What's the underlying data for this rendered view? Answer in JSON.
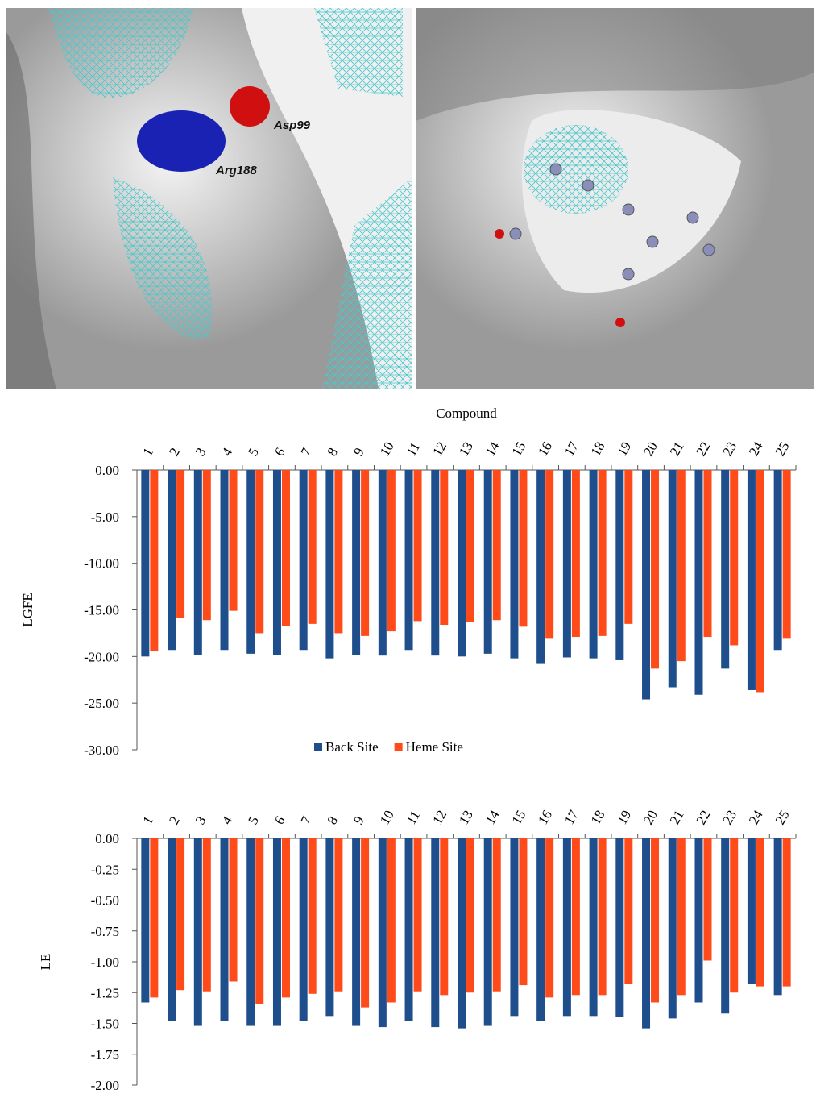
{
  "images": [
    {
      "labels": [
        "Asp99",
        "Arg188"
      ]
    },
    {}
  ],
  "chart_data": [
    {
      "type": "bar",
      "x_label": "Compound",
      "y_label": "LGFE",
      "categories": [
        "1",
        "2",
        "3",
        "4",
        "5",
        "6",
        "7",
        "8",
        "9",
        "10",
        "11",
        "12",
        "13",
        "14",
        "15",
        "16",
        "17",
        "18",
        "19",
        "20",
        "21",
        "22",
        "23",
        "24",
        "25"
      ],
      "series": [
        {
          "name": "Back Site",
          "color": "#1f4e8c",
          "values": [
            -20.0,
            -19.3,
            -19.8,
            -19.3,
            -19.7,
            -19.8,
            -19.3,
            -20.2,
            -19.8,
            -19.9,
            -19.3,
            -19.9,
            -20.0,
            -19.7,
            -20.2,
            -20.8,
            -20.1,
            -20.2,
            -20.4,
            -24.6,
            -23.3,
            -24.1,
            -21.3,
            -23.6,
            -19.3
          ]
        },
        {
          "name": "Heme Site",
          "color": "#ff4a1a",
          "values": [
            -19.4,
            -15.9,
            -16.1,
            -15.1,
            -17.5,
            -16.7,
            -16.5,
            -17.5,
            -17.8,
            -17.3,
            -16.2,
            -16.6,
            -16.3,
            -16.1,
            -16.8,
            -18.1,
            -17.9,
            -17.8,
            -16.5,
            -21.3,
            -20.5,
            -17.9,
            -18.8,
            -23.9,
            -18.1
          ]
        }
      ],
      "ylim": [
        -30,
        0
      ],
      "yticks": [
        {
          "value": 0,
          "label": "0.00"
        },
        {
          "value": -5,
          "label": "-5.00"
        },
        {
          "value": -10,
          "label": "-10.00"
        },
        {
          "value": -15,
          "label": "-15.00"
        },
        {
          "value": -20,
          "label": "-20.00"
        },
        {
          "value": -25,
          "label": "-25.00"
        },
        {
          "value": -30,
          "label": "-30.00"
        }
      ],
      "legend": "bottom"
    },
    {
      "type": "bar",
      "y_label": "LE",
      "categories": [
        "1",
        "2",
        "3",
        "4",
        "5",
        "6",
        "7",
        "8",
        "9",
        "10",
        "11",
        "12",
        "13",
        "14",
        "15",
        "16",
        "17",
        "18",
        "19",
        "20",
        "21",
        "22",
        "23",
        "24",
        "25"
      ],
      "series": [
        {
          "color": "#1f4e8c",
          "values": [
            -1.33,
            -1.48,
            -1.52,
            -1.48,
            -1.52,
            -1.52,
            -1.48,
            -1.44,
            -1.52,
            -1.53,
            -1.48,
            -1.53,
            -1.54,
            -1.52,
            -1.44,
            -1.48,
            -1.44,
            -1.44,
            -1.45,
            -1.54,
            -1.46,
            -1.33,
            -1.42,
            -1.18,
            -1.27
          ]
        },
        {
          "color": "#ff4a1a",
          "values": [
            -1.29,
            -1.23,
            -1.24,
            -1.16,
            -1.34,
            -1.29,
            -1.26,
            -1.24,
            -1.37,
            -1.33,
            -1.24,
            -1.27,
            -1.25,
            -1.24,
            -1.19,
            -1.29,
            -1.27,
            -1.27,
            -1.18,
            -1.33,
            -1.27,
            -0.99,
            -1.25,
            -1.2,
            -1.2
          ]
        }
      ],
      "ylim": [
        -2,
        0
      ],
      "yticks": [
        {
          "value": 0,
          "label": "0.00"
        },
        {
          "value": -0.25,
          "label": "-0.25"
        },
        {
          "value": -0.5,
          "label": "-0.50"
        },
        {
          "value": -0.75,
          "label": "-0.75"
        },
        {
          "value": -1,
          "label": "-1.00"
        },
        {
          "value": -1.25,
          "label": "-1.25"
        },
        {
          "value": -1.5,
          "label": "-1.50"
        },
        {
          "value": -1.75,
          "label": "-1.75"
        },
        {
          "value": -2,
          "label": "-2.00"
        }
      ]
    }
  ]
}
